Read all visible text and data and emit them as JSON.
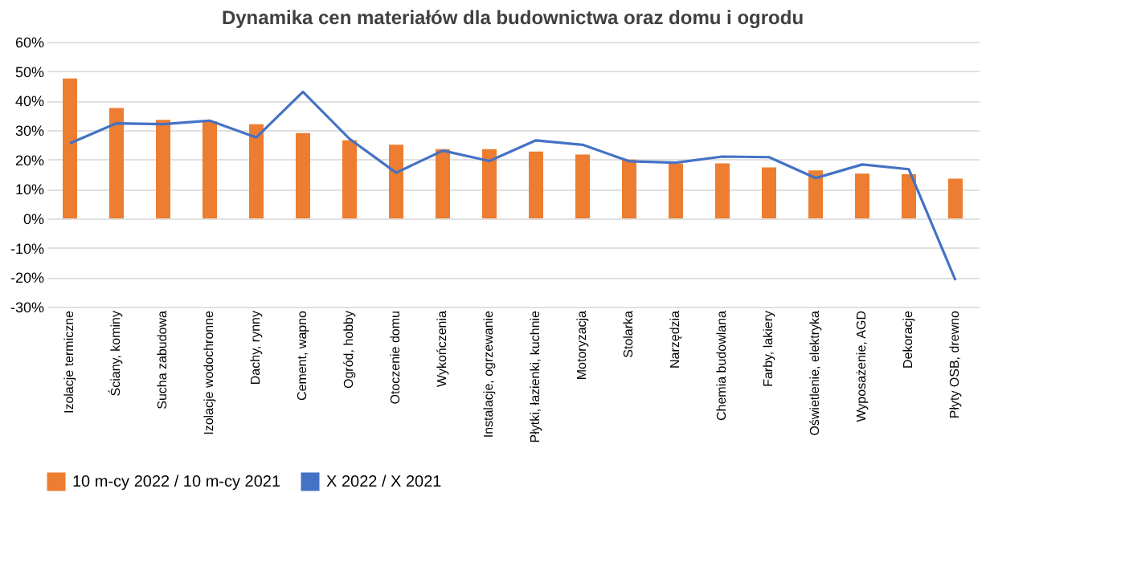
{
  "chart_data": {
    "type": "bar",
    "title": "Dynamika cen materiałów dla budownictwa oraz domu i ogrodu",
    "categories": [
      "Izolacje termiczne",
      "Ściany, kominy",
      "Sucha zabudowa",
      "Izolacje wodochronne",
      "Dachy, rynny",
      "Cement, wapno",
      "Ogród, hobby",
      "Otoczenie domu",
      "Wykończenia",
      "Instalacje, ogrzewanie",
      "Płytki, łazienki, kuchnie",
      "Motoryzacja",
      "Stolarka",
      "Narzędzia",
      "Chemia budowlana",
      "Farby, lakiery",
      "Oświetlenie, elektryka",
      "Wyposażenie, AGD",
      "Dekoracje",
      "Płyty OSB, drewno"
    ],
    "series": [
      {
        "name": "10 m-cy 2022 / 10 m-cy 2021",
        "color": "#ed7d31",
        "values": [
          47.5,
          37.5,
          33.5,
          33,
          32,
          29,
          26.5,
          25,
          23.5,
          23.5,
          22.7,
          21.7,
          20,
          18.6,
          18.7,
          17.3,
          16.3,
          15.2,
          15,
          13.5
        ]
      },
      {
        "name": "X 2022 / X 2021",
        "type": "line",
        "color": "#4472c4",
        "values": [
          25.5,
          32.3,
          32,
          33.2,
          27.5,
          43,
          27,
          15.5,
          23,
          19.5,
          26.5,
          25,
          19.4,
          18.9,
          21,
          20.8,
          13.7,
          18.3,
          16.7,
          -21
        ]
      }
    ],
    "ylim": [
      -30,
      60
    ],
    "yticks": [
      {
        "value": -30,
        "label": "-30%"
      },
      {
        "value": -20,
        "label": "-20%"
      },
      {
        "value": -10,
        "label": "-10%"
      },
      {
        "value": 0,
        "label": "0%"
      },
      {
        "value": 10,
        "label": "10%"
      },
      {
        "value": 20,
        "label": "20%"
      },
      {
        "value": 30,
        "label": "30%"
      },
      {
        "value": 40,
        "label": "40%"
      },
      {
        "value": 50,
        "label": "50%"
      },
      {
        "value": 60,
        "label": "60%"
      }
    ],
    "grid": "y",
    "legend": "bottom"
  }
}
